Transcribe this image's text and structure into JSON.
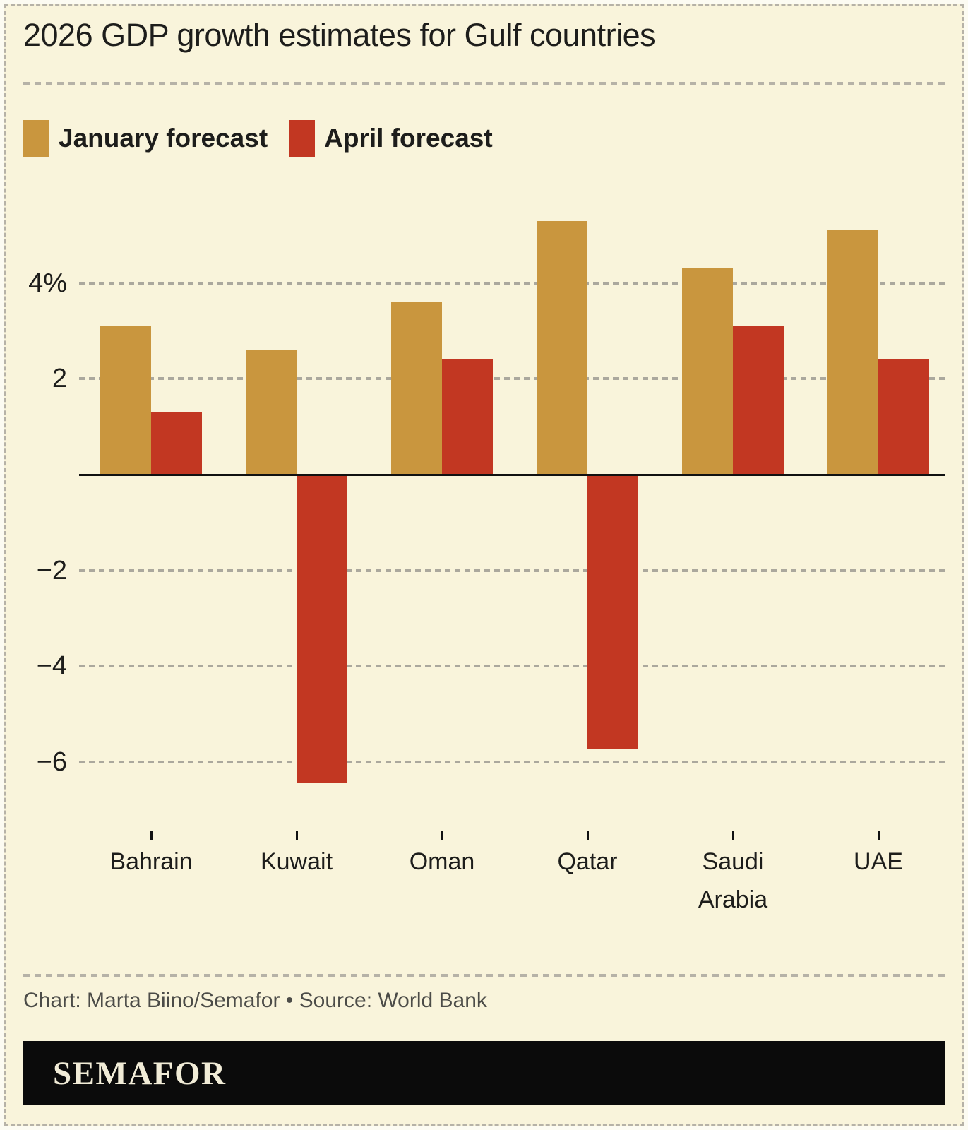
{
  "title": "2026 GDP growth estimates for Gulf countries",
  "legend": [
    {
      "label": "January forecast",
      "color": "#c9963e"
    },
    {
      "label": "April forecast",
      "color": "#c23722"
    }
  ],
  "chart_data": {
    "type": "bar",
    "title": "2026 GDP growth estimates for Gulf countries",
    "categories": [
      "Bahrain",
      "Kuwait",
      "Oman",
      "Qatar",
      "Saudi Arabia",
      "UAE"
    ],
    "series": [
      {
        "name": "January forecast",
        "color": "#c9963e",
        "values": [
          3.1,
          2.6,
          3.6,
          5.3,
          4.3,
          5.1
        ]
      },
      {
        "name": "April forecast",
        "color": "#c23722",
        "values": [
          1.3,
          -6.4,
          2.4,
          -5.7,
          3.1,
          2.4
        ]
      }
    ],
    "xlabel": "",
    "ylabel": "",
    "unit": "%",
    "yticks": [
      {
        "value": 4,
        "label": "4%"
      },
      {
        "value": 2,
        "label": "2"
      },
      {
        "value": -2,
        "label": "−2"
      },
      {
        "value": -4,
        "label": "−4"
      },
      {
        "value": -6,
        "label": "−6"
      }
    ],
    "ylim": [
      -7.2,
      5.6
    ],
    "grid": "dashed-horizontal",
    "legend_position": "top-left"
  },
  "footer": {
    "credit": "Chart: Marta Biino/Semafor • Source: World Bank",
    "brand": "SEMAFOR"
  }
}
